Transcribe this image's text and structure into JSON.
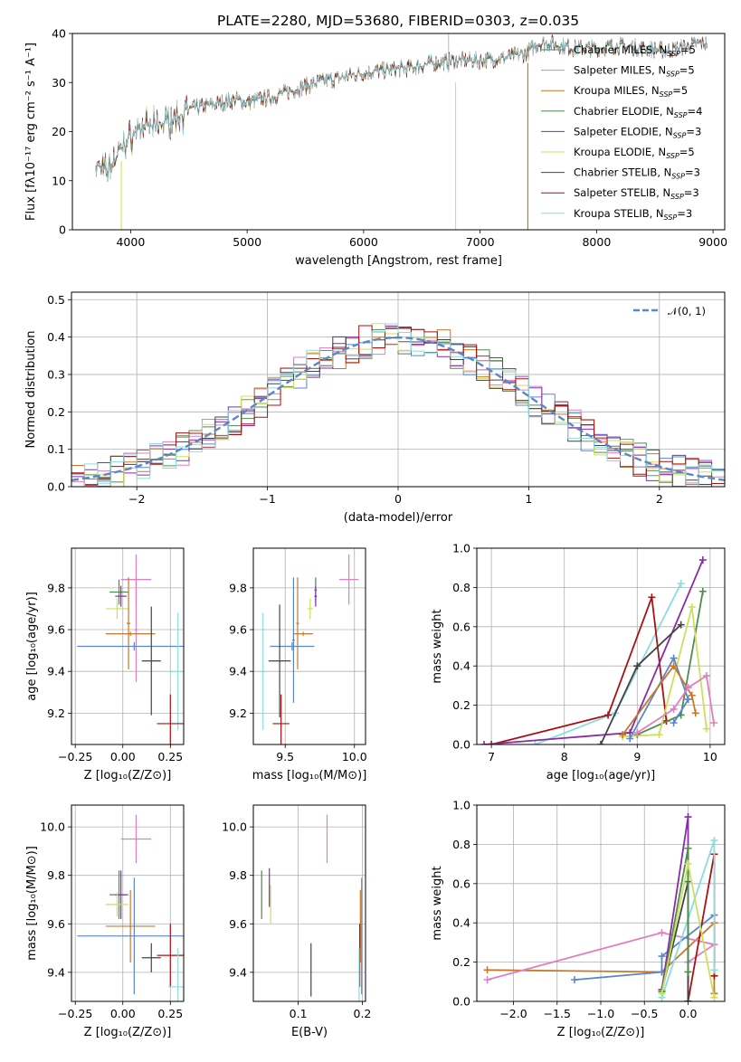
{
  "title": "PLATE=2280, MJD=53680, FIBERID=0303, z=0.035",
  "colors": {
    "c1": "#3a5f3a",
    "c2": "#e07fbf",
    "c3": "#c9772a",
    "c4": "#4f8a4f",
    "c5": "#8a2aa8",
    "c6": "#cde05a",
    "c7": "#444444",
    "c8": "#aa1111",
    "c9": "#88dde0",
    "blue": "#6688cc",
    "pink": "#e07fbf"
  },
  "chart_data": [
    {
      "id": "spectrum",
      "type": "line",
      "xlabel": "wavelength [Angstrom, rest frame]",
      "ylabel": "Flux [fλ10⁻¹⁷ erg cm⁻² s⁻¹ A⁻¹]",
      "xlim": [
        3500,
        9100
      ],
      "ylim": [
        0,
        40
      ],
      "xticks": [
        "4000",
        "5000",
        "6000",
        "7000",
        "8000",
        "9000"
      ],
      "yticks": [
        "0",
        "10",
        "20",
        "30",
        "40"
      ],
      "grid": false,
      "legend_position": "top-right",
      "legend": [
        {
          "label": "Chabrier MILES, N",
          "sub": "SSP",
          "tail": "=5",
          "color": "#3a8a8a"
        },
        {
          "label": "Salpeter MILES, N",
          "sub": "SSP",
          "tail": "=5",
          "color": "#e07fbf"
        },
        {
          "label": "Kroupa MILES, N",
          "sub": "SSP",
          "tail": "=5",
          "color": "#c9772a"
        },
        {
          "label": "Chabrier ELODIE, N",
          "sub": "SSP",
          "tail": "=4",
          "color": "#4f8a4f"
        },
        {
          "label": "Salpeter ELODIE, N",
          "sub": "SSP",
          "tail": "=3",
          "color": "#8a2aa8"
        },
        {
          "label": "Kroupa ELODIE, N",
          "sub": "SSP",
          "tail": "=5",
          "color": "#cde05a"
        },
        {
          "label": "Chabrier STELIB, N",
          "sub": "SSP",
          "tail": "=3",
          "color": "#444444"
        },
        {
          "label": "Salpeter STELIB, N",
          "sub": "SSP",
          "tail": "=3",
          "color": "#aa1111"
        },
        {
          "label": "Kroupa STELIB, N",
          "sub": "SSP",
          "tail": "=3",
          "color": "#88dde0"
        }
      ],
      "continuum": [
        [
          3700,
          13
        ],
        [
          3800,
          12
        ],
        [
          3900,
          16
        ],
        [
          4000,
          19
        ],
        [
          4100,
          21
        ],
        [
          4200,
          21
        ],
        [
          4300,
          22
        ],
        [
          4400,
          23
        ],
        [
          4500,
          24.5
        ],
        [
          4700,
          25.5
        ],
        [
          4900,
          26.5
        ],
        [
          5000,
          26
        ],
        [
          5200,
          27
        ],
        [
          5400,
          28.5
        ],
        [
          5600,
          30
        ],
        [
          5800,
          31
        ],
        [
          6000,
          32
        ],
        [
          6200,
          32.5
        ],
        [
          6400,
          33
        ],
        [
          6600,
          34
        ],
        [
          6800,
          34.5
        ],
        [
          7000,
          34.5
        ],
        [
          7200,
          35
        ],
        [
          7400,
          36
        ],
        [
          7500,
          38
        ],
        [
          7600,
          38
        ],
        [
          7800,
          37
        ],
        [
          8000,
          37
        ],
        [
          8200,
          37.5
        ],
        [
          8400,
          37
        ],
        [
          8600,
          36.5
        ],
        [
          8800,
          37.5
        ],
        [
          8900,
          38
        ]
      ]
    },
    {
      "id": "residual-histogram",
      "type": "histogram",
      "xlabel": "(data-model)/error",
      "ylabel": "Normed distribution",
      "xlim": [
        -2.5,
        2.5
      ],
      "ylim": [
        0,
        0.52
      ],
      "xticks": [
        "−2",
        "−1",
        "0",
        "1",
        "2"
      ],
      "yticks": [
        "0.0",
        "0.1",
        "0.2",
        "0.3",
        "0.4",
        "0.5"
      ],
      "grid": true,
      "legend_position": "top-right",
      "legend": [
        {
          "label": "𝒩(0, 1)",
          "color": "#5a86cc"
        }
      ],
      "bin_width": 0.1,
      "gaussian": {
        "mean": 0,
        "sigma": 1
      }
    },
    {
      "id": "age-vs-Z",
      "type": "errorbar",
      "xlabel": "Z [log₁₀(Z/Z⊙)]",
      "ylabel": "age  [log₁₀(age/yr)]",
      "xlim": [
        -0.27,
        0.32
      ],
      "ylim": [
        9.05,
        9.99
      ],
      "xticks": [
        "−0.25",
        "0.00",
        "0.25"
      ],
      "yticks": [
        "9.2",
        "9.4",
        "9.6",
        "9.8"
      ],
      "points": [
        {
          "x": 0.07,
          "y": 9.84,
          "xe": 0.08,
          "ye": 0.12,
          "color": "#e07fbf"
        },
        {
          "x": -0.02,
          "y": 9.78,
          "xe": 0.05,
          "ye": 0.06,
          "color": "#4f8a4f"
        },
        {
          "x": -0.01,
          "y": 9.76,
          "xe": 0.03,
          "ye": 0.05,
          "color": "#8a2aa8"
        },
        {
          "x": -0.03,
          "y": 9.7,
          "xe": 0.06,
          "ye": 0.05,
          "color": "#cde05a"
        },
        {
          "x": 0.03,
          "y": 9.63,
          "xe": 0.01,
          "ye": 0.22,
          "color": "#c9772a"
        },
        {
          "x": 0.07,
          "y": 9.6,
          "xe": 0.01,
          "ye": 0.25,
          "color": "#e07fbf"
        },
        {
          "x": 0.04,
          "y": 9.58,
          "xe": 0.13,
          "ye": 0.01,
          "color": "#c9772a"
        },
        {
          "x": 0.06,
          "y": 9.52,
          "xe": 0.3,
          "ye": 0.02,
          "color": "#5a86cc"
        },
        {
          "x": 0.15,
          "y": 9.45,
          "xe": 0.05,
          "ye": 0.26,
          "color": "#444444"
        },
        {
          "x": 0.29,
          "y": 9.4,
          "xe": 0.05,
          "ye": 0.28,
          "color": "#88dde0"
        },
        {
          "x": 0.25,
          "y": 9.15,
          "xe": 0.07,
          "ye": 0.14,
          "color": "#aa1111"
        }
      ]
    },
    {
      "id": "age-vs-mass",
      "type": "errorbar",
      "xlabel": "mass [log₁₀(M/M⊙)]",
      "ylabel": "",
      "xlim": [
        9.27,
        10.08
      ],
      "ylim": [
        9.05,
        9.99
      ],
      "xticks": [
        "9.5",
        "10.0"
      ],
      "yticks": [
        "9.2",
        "9.4",
        "9.6",
        "9.8"
      ],
      "points": [
        {
          "x": 9.96,
          "y": 9.84,
          "xe": 0.07,
          "ye": 0.12,
          "color": "#e07fbf"
        },
        {
          "x": 9.72,
          "y": 9.79,
          "xe": 0.01,
          "ye": 0.06,
          "color": "#4f8a4f"
        },
        {
          "x": 9.72,
          "y": 9.76,
          "xe": 0.01,
          "ye": 0.05,
          "color": "#8a2aa8"
        },
        {
          "x": 9.68,
          "y": 9.7,
          "xe": 0.02,
          "ye": 0.05,
          "color": "#cde05a"
        },
        {
          "x": 9.59,
          "y": 9.63,
          "xe": 0.01,
          "ye": 0.22,
          "color": "#c9772a"
        },
        {
          "x": 9.63,
          "y": 9.58,
          "xe": 0.07,
          "ye": 0.01,
          "color": "#c9772a"
        },
        {
          "x": 9.56,
          "y": 9.55,
          "xe": 0.01,
          "ye": 0.3,
          "color": "#5a86cc"
        },
        {
          "x": 9.55,
          "y": 9.52,
          "xe": 0.16,
          "ye": 0.02,
          "color": "#5a86cc"
        },
        {
          "x": 9.46,
          "y": 9.45,
          "xe": 0.08,
          "ye": 0.27,
          "color": "#444444"
        },
        {
          "x": 9.34,
          "y": 9.4,
          "xe": 0.02,
          "ye": 0.28,
          "color": "#88dde0"
        },
        {
          "x": 9.47,
          "y": 9.15,
          "xe": 0.06,
          "ye": 0.14,
          "color": "#aa1111"
        }
      ]
    },
    {
      "id": "mass-weight-vs-age",
      "type": "line",
      "xlabel": "age  [log₁₀(age/yr)]",
      "ylabel": "mass weight",
      "xlim": [
        6.8,
        10.2
      ],
      "ylim": [
        0,
        1
      ],
      "xticks": [
        "7",
        "8",
        "9",
        "10"
      ],
      "yticks": [
        "0.0",
        "0.2",
        "0.4",
        "0.6",
        "0.8",
        "1.0"
      ],
      "grid": true,
      "series": [
        {
          "color": "#88dde0",
          "values": [
            [
              7.6,
              0.0
            ],
            [
              8.7,
              0.16
            ],
            [
              9.6,
              0.82
            ]
          ]
        },
        {
          "color": "#aa1111",
          "values": [
            [
              7.0,
              0.0
            ],
            [
              8.6,
              0.15
            ],
            [
              9.2,
              0.75
            ],
            [
              9.4,
              0.12
            ]
          ]
        },
        {
          "color": "#8a2aa8",
          "values": [
            [
              6.9,
              0.0
            ],
            [
              8.9,
              0.06
            ],
            [
              9.9,
              0.94
            ]
          ]
        },
        {
          "color": "#444444",
          "values": [
            [
              8.5,
              0.0
            ],
            [
              9.0,
              0.4
            ],
            [
              9.6,
              0.61
            ]
          ]
        },
        {
          "color": "#4f8a4f",
          "values": [
            [
              9.0,
              0.05
            ],
            [
              9.6,
              0.15
            ],
            [
              9.9,
              0.78
            ]
          ]
        },
        {
          "color": "#cde05a",
          "values": [
            [
              8.8,
              0.04
            ],
            [
              9.3,
              0.05
            ],
            [
              9.75,
              0.7
            ],
            [
              9.95,
              0.08
            ]
          ]
        },
        {
          "color": "#5a86cc",
          "values": [
            [
              8.9,
              0.03
            ],
            [
              9.5,
              0.44
            ],
            [
              9.7,
              0.23
            ],
            [
              9.5,
              0.11
            ]
          ]
        },
        {
          "color": "#c9772a",
          "values": [
            [
              8.8,
              0.05
            ],
            [
              9.5,
              0.4
            ],
            [
              9.75,
              0.25
            ],
            [
              9.8,
              0.16
            ]
          ]
        },
        {
          "color": "#e07fbf",
          "values": [
            [
              9.0,
              0.06
            ],
            [
              9.5,
              0.18
            ],
            [
              9.7,
              0.29
            ],
            [
              9.95,
              0.35
            ],
            [
              10.05,
              0.11
            ]
          ]
        }
      ]
    },
    {
      "id": "mass-vs-Z",
      "type": "errorbar",
      "xlabel": "Z [log₁₀(Z/Z⊙)]",
      "ylabel": "mass [log₁₀(M/M⊙)]",
      "xlim": [
        -0.27,
        0.32
      ],
      "ylim": [
        9.28,
        10.09
      ],
      "xticks": [
        "−0.25",
        "0.00",
        "0.25"
      ],
      "yticks": [
        "9.4",
        "9.6",
        "9.8",
        "10.0"
      ],
      "points": [
        {
          "x": 0.07,
          "y": 9.95,
          "xe": 0.08,
          "ye": 0.1,
          "color": "#e07fbf"
        },
        {
          "x": -0.02,
          "y": 9.72,
          "xe": 0.05,
          "ye": 0.1,
          "color": "#4f8a4f"
        },
        {
          "x": -0.01,
          "y": 9.72,
          "xe": 0.03,
          "ye": 0.1,
          "color": "#8a2aa8"
        },
        {
          "x": -0.03,
          "y": 9.68,
          "xe": 0.06,
          "ye": 0.05,
          "color": "#cde05a"
        },
        {
          "x": 0.04,
          "y": 9.59,
          "xe": 0.13,
          "ye": 0.15,
          "color": "#c9772a"
        },
        {
          "x": 0.06,
          "y": 9.55,
          "xe": 0.3,
          "ye": 0.24,
          "color": "#5a86cc"
        },
        {
          "x": 0.15,
          "y": 9.46,
          "xe": 0.05,
          "ye": 0.06,
          "color": "#444444"
        },
        {
          "x": 0.25,
          "y": 9.47,
          "xe": 0.07,
          "ye": 0.13,
          "color": "#aa1111"
        },
        {
          "x": 0.29,
          "y": 9.34,
          "xe": 0.05,
          "ye": 0.16,
          "color": "#88dde0"
        }
      ]
    },
    {
      "id": "mass-vs-EBV",
      "type": "errorbar",
      "xlabel": "E(B-V)",
      "ylabel": "",
      "xlim": [
        0.03,
        0.205
      ],
      "ylim": [
        9.28,
        10.09
      ],
      "xticks": [
        "0.1",
        "0.2"
      ],
      "yticks": [
        "9.4",
        "9.6",
        "9.8",
        "10.0"
      ],
      "points": [
        {
          "x": 0.145,
          "y": 9.95,
          "xe": 0,
          "ye": 0.1,
          "color": "#e07fbf"
        },
        {
          "x": 0.043,
          "y": 9.72,
          "xe": 0,
          "ye": 0.1,
          "color": "#4f8a4f"
        },
        {
          "x": 0.055,
          "y": 9.75,
          "xe": 0,
          "ye": 0.08,
          "color": "#8a2aa8"
        },
        {
          "x": 0.057,
          "y": 9.68,
          "xe": 0,
          "ye": 0.08,
          "color": "#cde05a"
        },
        {
          "x": 0.197,
          "y": 9.59,
          "xe": 0,
          "ye": 0.15,
          "color": "#c9772a"
        },
        {
          "x": 0.199,
          "y": 9.55,
          "xe": 0,
          "ye": 0.24,
          "color": "#5a86cc"
        },
        {
          "x": 0.12,
          "y": 9.41,
          "xe": 0,
          "ye": 0.11,
          "color": "#444444"
        },
        {
          "x": 0.196,
          "y": 9.47,
          "xe": 0,
          "ye": 0.13,
          "color": "#aa1111"
        },
        {
          "x": 0.195,
          "y": 9.34,
          "xe": 0,
          "ye": 0.16,
          "color": "#88dde0"
        }
      ]
    },
    {
      "id": "mass-weight-vs-Z",
      "type": "line",
      "xlabel": "Z [log₁₀(Z/Z⊙)]",
      "ylabel": "mass weight",
      "xlim": [
        -2.42,
        0.42
      ],
      "ylim": [
        0,
        1
      ],
      "xticks": [
        "−2.0",
        "−1.5",
        "−1.0",
        "−0.5",
        "0.0"
      ],
      "yticks": [
        "0.0",
        "0.2",
        "0.4",
        "0.6",
        "0.8",
        "1.0"
      ],
      "grid": true,
      "series": [
        {
          "color": "#c9772a",
          "values": [
            [
              -2.3,
              0.16
            ],
            [
              -0.3,
              0.15
            ],
            [
              0.3,
              0.4
            ],
            [
              0.3,
              0.04
            ]
          ]
        },
        {
          "color": "#e07fbf",
          "values": [
            [
              -2.3,
              0.11
            ],
            [
              -0.3,
              0.35
            ],
            [
              0.3,
              0.29
            ],
            [
              0.0,
              0.2
            ]
          ]
        },
        {
          "color": "#5a86cc",
          "values": [
            [
              -1.3,
              0.11
            ],
            [
              -0.3,
              0.15
            ],
            [
              -0.3,
              0.23
            ],
            [
              0.3,
              0.44
            ]
          ]
        },
        {
          "color": "#8a2aa8",
          "values": [
            [
              -0.3,
              0.06
            ],
            [
              0.0,
              0.94
            ],
            [
              0.0,
              0.0
            ]
          ]
        },
        {
          "color": "#aa1111",
          "values": [
            [
              0.0,
              0.0
            ],
            [
              0.3,
              0.75
            ],
            [
              0.3,
              0.13
            ]
          ]
        },
        {
          "color": "#88dde0",
          "values": [
            [
              -0.3,
              0.02
            ],
            [
              0.3,
              0.82
            ],
            [
              0.3,
              0.16
            ]
          ]
        },
        {
          "color": "#444444",
          "values": [
            [
              0.0,
              0.0
            ],
            [
              0.0,
              0.61
            ],
            [
              -0.3,
              0.05
            ]
          ]
        },
        {
          "color": "#4f8a4f",
          "values": [
            [
              -0.3,
              0.05
            ],
            [
              0.0,
              0.78
            ],
            [
              0.0,
              0.15
            ]
          ]
        },
        {
          "color": "#cde05a",
          "values": [
            [
              -0.3,
              0.04
            ],
            [
              0.0,
              0.7
            ],
            [
              0.3,
              0.02
            ]
          ]
        }
      ]
    }
  ]
}
